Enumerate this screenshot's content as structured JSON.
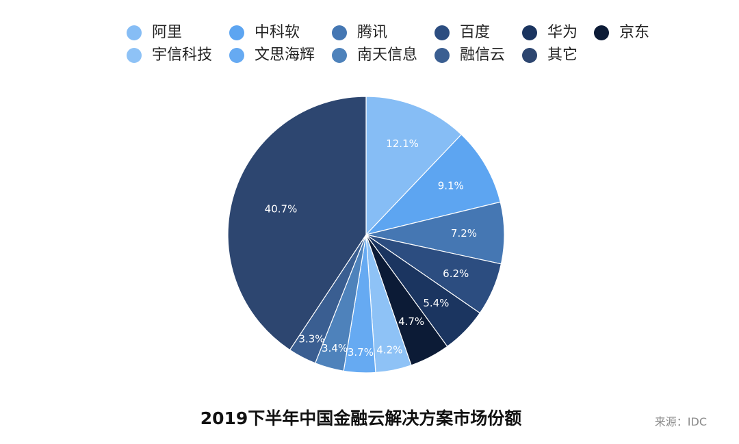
{
  "chart_data": {
    "type": "pie",
    "title": "2019下半年中国金融云解决方案市场份额",
    "source": "来源：IDC",
    "legend_position": "top",
    "slices": [
      {
        "label": "阿里",
        "value": 12.1,
        "display": "12.1%",
        "color": "#86bdf5"
      },
      {
        "label": "中科软",
        "value": 9.1,
        "display": "9.1%",
        "color": "#5da5f1"
      },
      {
        "label": "腾讯",
        "value": 7.2,
        "display": "7.2%",
        "color": "#4577b3"
      },
      {
        "label": "百度",
        "value": 6.2,
        "display": "6.2%",
        "color": "#2c4d80"
      },
      {
        "label": "华为",
        "value": 5.4,
        "display": "5.4%",
        "color": "#1b3560"
      },
      {
        "label": "京东",
        "value": 4.7,
        "display": "4.7%",
        "color": "#0c1b36"
      },
      {
        "label": "宇信科技",
        "value": 4.2,
        "display": "4.2%",
        "color": "#8ec2f6"
      },
      {
        "label": "文思海辉",
        "value": 3.7,
        "display": "3.7%",
        "color": "#66aaf2"
      },
      {
        "label": "南天信息",
        "value": 3.4,
        "display": "3.4%",
        "color": "#4e82bb"
      },
      {
        "label": "融信云",
        "value": 3.3,
        "display": "3.3%",
        "color": "#3a5e91"
      },
      {
        "label": "其它",
        "value": 40.7,
        "display": "40.7%",
        "color": "#2d4670"
      }
    ]
  }
}
